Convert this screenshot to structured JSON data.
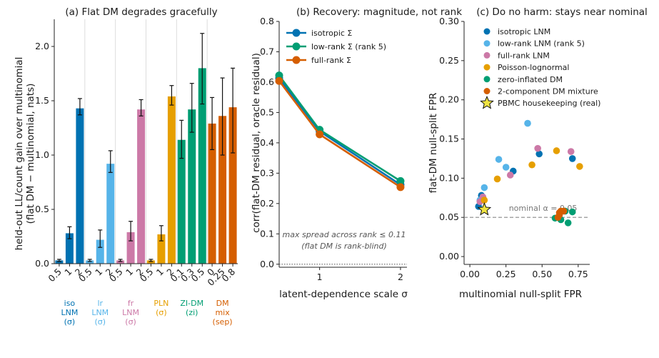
{
  "chart_data": [
    {
      "type": "bar",
      "title": "(a) Flat DM degrades gracefully",
      "ylabel_lines": [
        "held-out LL/count gain over multinomial",
        "(flat DM − multinomial, nats)"
      ],
      "ylim": [
        0,
        2.25
      ],
      "yticks": [
        "0.0",
        "0.5",
        "1.0",
        "1.5",
        "2.0"
      ],
      "grid": false,
      "groups": [
        {
          "label_lines": [
            "iso",
            "LNM",
            "(σ)"
          ],
          "color": "#0072b2",
          "bars": [
            {
              "x": "0.5",
              "value": 0.03,
              "err": [
                0.02,
                0.04
              ]
            },
            {
              "x": "1",
              "value": 0.28,
              "err": [
                0.23,
                0.34
              ]
            },
            {
              "x": "2",
              "value": 1.43,
              "err": [
                1.37,
                1.52
              ]
            }
          ]
        },
        {
          "label_lines": [
            "lr",
            "LNM",
            "(σ)"
          ],
          "color": "#56b4e9",
          "bars": [
            {
              "x": "0.5",
              "value": 0.03,
              "err": [
                0.02,
                0.04
              ]
            },
            {
              "x": "1",
              "value": 0.22,
              "err": [
                0.15,
                0.31
              ]
            },
            {
              "x": "2",
              "value": 0.92,
              "err": [
                0.84,
                1.04
              ]
            }
          ]
        },
        {
          "label_lines": [
            "fr",
            "LNM",
            "(σ)"
          ],
          "color": "#cc79a7",
          "bars": [
            {
              "x": "0.5",
              "value": 0.03,
              "err": [
                0.02,
                0.04
              ]
            },
            {
              "x": "1",
              "value": 0.29,
              "err": [
                0.21,
                0.39
              ]
            },
            {
              "x": "2",
              "value": 1.42,
              "err": [
                1.36,
                1.51
              ]
            }
          ]
        },
        {
          "label_lines": [
            "PLN",
            "(σ)"
          ],
          "color": "#e69f00",
          "bars": [
            {
              "x": "0.5",
              "value": 0.03,
              "err": [
                0.02,
                0.04
              ]
            },
            {
              "x": "1",
              "value": 0.27,
              "err": [
                0.21,
                0.35
              ]
            },
            {
              "x": "2",
              "value": 1.54,
              "err": [
                1.46,
                1.64
              ]
            }
          ]
        },
        {
          "label_lines": [
            "ZI-DM",
            "(zi)"
          ],
          "color": "#009e73",
          "bars": [
            {
              "x": "0.1",
              "value": 1.14,
              "err": [
                0.97,
                1.32
              ]
            },
            {
              "x": "0.3",
              "value": 1.42,
              "err": [
                1.21,
                1.66
              ]
            },
            {
              "x": "0.5",
              "value": 1.8,
              "err": [
                1.47,
                2.12
              ]
            }
          ]
        },
        {
          "label_lines": [
            "DM",
            "mix",
            "(sep)"
          ],
          "color": "#d55e00",
          "bars": [
            {
              "x": "0",
              "value": 1.29,
              "err": [
                1.05,
                1.53
              ]
            },
            {
              "x": "0.25",
              "value": 1.36,
              "err": [
                1.0,
                1.71
              ]
            },
            {
              "x": "0.8",
              "value": 1.44,
              "err": [
                1.02,
                1.8
              ]
            }
          ]
        }
      ]
    },
    {
      "type": "line",
      "title": "(b) Recovery: magnitude, not rank",
      "xlabel": "latent-dependence scale  σ",
      "ylabel": "corr(flat-DM residual, oracle residual)",
      "xlim": [
        0.5,
        2.08
      ],
      "ylim": [
        -0.01,
        0.8
      ],
      "xticks": [
        "1",
        "2"
      ],
      "yticks": [
        "0.0",
        "0.1",
        "0.2",
        "0.3",
        "0.4",
        "0.5",
        "0.6",
        "0.7",
        "0.8"
      ],
      "legend_position": "top-left",
      "x": [
        0.5,
        1,
        2
      ],
      "series": [
        {
          "name": "isotropic Σ",
          "color": "#0072b2",
          "values": [
            0.613,
            0.438,
            0.262
          ]
        },
        {
          "name": "low-rank Σ (rank 5)",
          "color": "#009e73",
          "values": [
            0.622,
            0.443,
            0.274
          ]
        },
        {
          "name": "full-rank Σ",
          "color": "#d55e00",
          "values": [
            0.604,
            0.428,
            0.254
          ]
        }
      ],
      "annotation_lines": [
        "max spread across rank  ≤ 0.11",
        "(flat DM is rank-blind)"
      ],
      "dotted_reference": 0.0
    },
    {
      "type": "scatter",
      "title": "(c) Do no harm: stays near nominal",
      "xlabel": "multinomial null-split FPR",
      "ylabel": "flat-DM null-split FPR",
      "xlim": [
        -0.04,
        0.83
      ],
      "ylim": [
        -0.01,
        0.3
      ],
      "xticks": [
        "0.00",
        "0.25",
        "0.50",
        "0.75"
      ],
      "yticks": [
        "0.00",
        "0.05",
        "0.10",
        "0.15",
        "0.20",
        "0.25",
        "0.30"
      ],
      "reference_line": {
        "y": 0.05,
        "label": "nominal α = 0.05"
      },
      "legend_position": "top-left",
      "series": [
        {
          "name": "isotropic LNM",
          "color": "#0072b2",
          "marker": "circle",
          "points": [
            [
              0.06,
              0.064
            ],
            [
              0.08,
              0.078
            ],
            [
              0.3,
              0.109
            ],
            [
              0.48,
              0.131
            ],
            [
              0.71,
              0.125
            ]
          ]
        },
        {
          "name": "low-rank LNM (rank 5)",
          "color": "#56b4e9",
          "marker": "circle",
          "points": [
            [
              0.07,
              0.072
            ],
            [
              0.1,
              0.088
            ],
            [
              0.2,
              0.124
            ],
            [
              0.25,
              0.114
            ],
            [
              0.4,
              0.17
            ]
          ]
        },
        {
          "name": "full-rank LNM",
          "color": "#cc79a7",
          "marker": "circle",
          "points": [
            [
              0.07,
              0.07
            ],
            [
              0.09,
              0.076
            ],
            [
              0.28,
              0.104
            ],
            [
              0.47,
              0.138
            ],
            [
              0.7,
              0.134
            ]
          ]
        },
        {
          "name": "Poisson-lognormal",
          "color": "#e69f00",
          "marker": "circle",
          "points": [
            [
              0.1,
              0.072
            ],
            [
              0.19,
              0.099
            ],
            [
              0.43,
              0.117
            ],
            [
              0.6,
              0.135
            ],
            [
              0.76,
              0.115
            ]
          ]
        },
        {
          "name": "zero-inflated DM",
          "color": "#009e73",
          "marker": "circle",
          "points": [
            [
              0.59,
              0.049
            ],
            [
              0.63,
              0.047
            ],
            [
              0.68,
              0.043
            ],
            [
              0.71,
              0.057
            ],
            [
              0.66,
              0.058
            ]
          ]
        },
        {
          "name": "2-component DM mixture",
          "color": "#d55e00",
          "marker": "circle",
          "points": [
            [
              0.61,
              0.05
            ],
            [
              0.62,
              0.053
            ],
            [
              0.62,
              0.056
            ],
            [
              0.63,
              0.058
            ],
            [
              0.65,
              0.058
            ]
          ]
        },
        {
          "name": "PBMC housekeeping (real)",
          "color": "#f0e442",
          "marker": "star",
          "points": [
            [
              0.1,
              0.06
            ]
          ]
        }
      ]
    }
  ]
}
